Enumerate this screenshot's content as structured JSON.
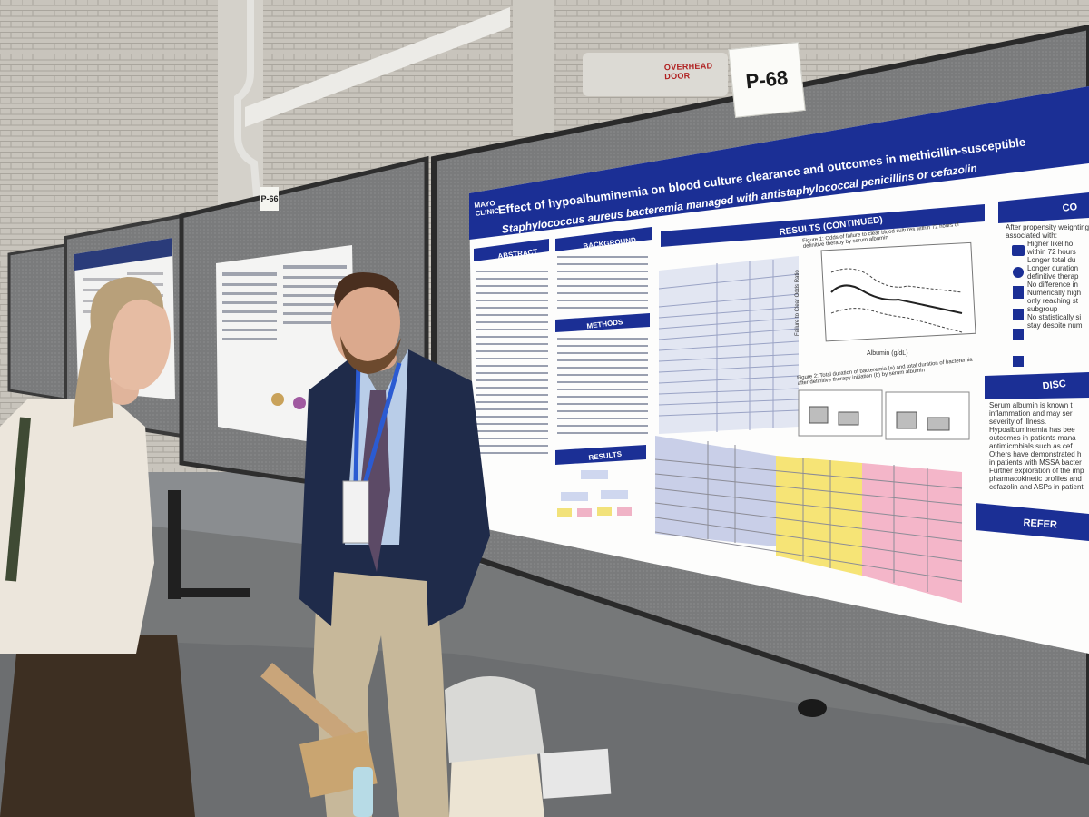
{
  "booth": {
    "poster_number": "P-68",
    "neighbor_number": "P-66",
    "door_sign": "OVERHEAD DOOR"
  },
  "poster": {
    "logo": "MAYO CLINIC",
    "title_line1": "Effect of hypoalbuminemia on blood culture clearance and outcomes in methicillin-susceptible",
    "title_line2": "Staphylococcus aureus bacteremia managed with antistaphylococcal penicillins or cefazolin",
    "sections": {
      "abstract": "ABSTRACT",
      "background": "BACKGROUND",
      "methods": "METHODS",
      "results": "RESULTS",
      "results_continued": "RESULTS (CONTINUED)"
    },
    "figure1_caption": "Figure 1: Odds of failure to clear blood cultures within 72 hours of definitive therapy by serum albumin",
    "figure1_xlabel": "Albumin (g/dL)",
    "figure1_ylabel": "Failure to Clear Odds Ratio",
    "figure2_caption": "Figure 2: Total duration of bacteremia (a) and total duration of bacteremia after definitive therapy initiation (b) by serum albumin",
    "right_column": {
      "conclusions_head": "CO",
      "conclusion_lines": [
        "After propensity weighting",
        "associated with:",
        "Higher likeliho",
        "within 72 hours",
        "Longer total du",
        "Longer duration",
        "definitive therap",
        "No difference in",
        "Numerically high",
        "only reaching st",
        "subgroup",
        "No statistically si",
        "stay despite num"
      ],
      "discussion_head": "DISC",
      "discussion_lines": [
        "Serum albumin is known t",
        "inflammation and may ser",
        "severity of illness.",
        "Hypoalbuminemia has bee",
        "outcomes in patients mana",
        "antimicrobials such as cef",
        "Others have demonstrated h",
        "in patients with MSSA bacter",
        "Further exploration of the imp",
        "pharmacokinetic profiles and",
        "cefazolin and ASPs in patient"
      ],
      "references_head": "REFER"
    }
  },
  "colors": {
    "wall": "#c9c5bd",
    "panel": "#7d7e7f",
    "poster_blue": "#1b2f95",
    "floor": "#7c7e80"
  }
}
